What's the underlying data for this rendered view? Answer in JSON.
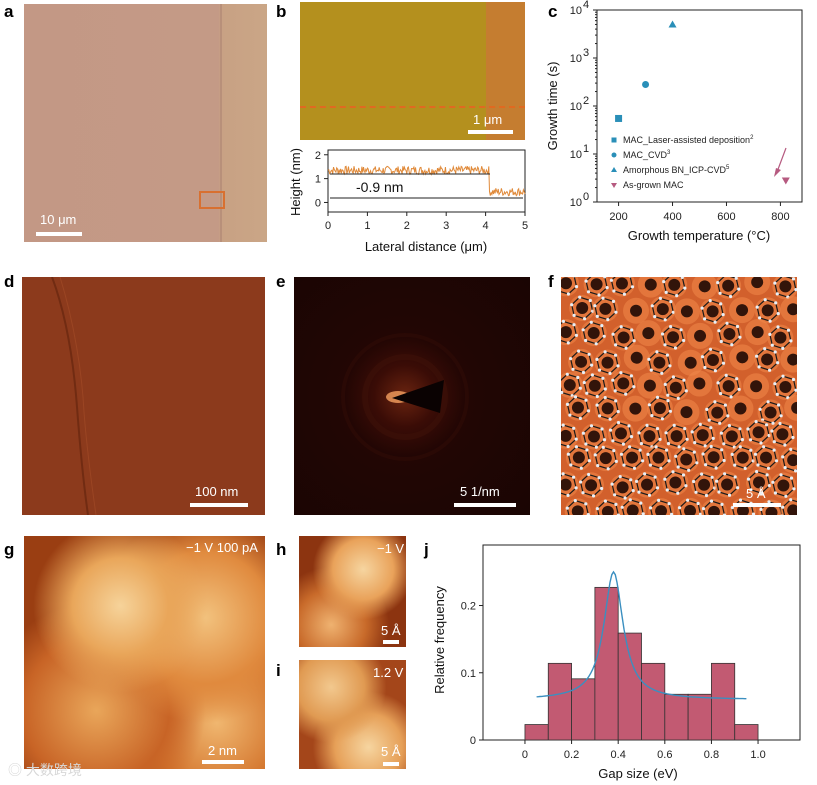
{
  "panel_labels": {
    "a": "a",
    "b": "b",
    "c": "c",
    "d": "d",
    "e": "e",
    "f": "f",
    "g": "g",
    "h": "h",
    "i": "i",
    "j": "j"
  },
  "scalebars": {
    "a": "10 μm",
    "b": "1 μm",
    "d": "100 nm",
    "e": "5 1/nm",
    "f": "5 Å",
    "g": "2 nm",
    "h": "5 Å",
    "i": "5 Å"
  },
  "stm_conditions": {
    "g": "−1 V 100 pA",
    "h": "−1 V",
    "i": "1.2 V"
  },
  "watermark": "大数跨境",
  "colors": {
    "optical": "#c49a86",
    "afm_film": "#b4901e",
    "afm_bg": "#c57d30",
    "afm_dashed": "#e06a20",
    "tem": "#8c3a1c",
    "fft": "#1a0503",
    "atomic": "#d2602c",
    "stm": "#e09a4a",
    "hist_bar": "#c25a72",
    "fit_line": "#3b8fc0",
    "series_blue": "#2a8fb8",
    "series_pink": "#b65a80"
  },
  "profile": {
    "xlabel": "Lateral distance  (μm)",
    "ylabel": "Height (nm)",
    "annotation": "-0.9 nm",
    "xticks": [
      "0",
      "1",
      "2",
      "3",
      "4",
      "5"
    ],
    "yticks": [
      "0",
      "1",
      "2"
    ]
  },
  "chart_data": [
    {
      "type": "scatter",
      "title": "",
      "xlabel": "Growth  temperature (°C)",
      "ylabel": "Growth time (s)",
      "xlim": [
        120,
        880
      ],
      "ylim_log10": [
        0,
        4
      ],
      "xticks": [
        "200",
        "400",
        "600",
        "800"
      ],
      "yticks": [
        "10^0",
        "10^1",
        "10^2",
        "10^3",
        "10^4"
      ],
      "series": [
        {
          "name": "MAC_Laser-assisted deposition",
          "ref": "2",
          "marker": "square",
          "color": "#2a8fb8",
          "points": [
            [
              200,
              55
            ]
          ]
        },
        {
          "name": "MAC_CVD",
          "ref": "3",
          "marker": "circle",
          "color": "#2a8fb8",
          "points": [
            [
              300,
              280
            ]
          ]
        },
        {
          "name": "Amorphous BN_ICP-CVD",
          "ref": "5",
          "marker": "triangle",
          "color": "#2a8fb8",
          "points": [
            [
              400,
              5000
            ]
          ]
        },
        {
          "name": "As-grown MAC",
          "ref": "",
          "marker": "triangle-down",
          "color": "#b65a80",
          "points": [
            [
              820,
              2.8
            ]
          ]
        }
      ]
    },
    {
      "type": "bar",
      "title": "",
      "xlabel": "Gap size (eV)",
      "ylabel": "Relative frequency",
      "xlim": [
        -0.18,
        1.18
      ],
      "ylim": [
        0,
        0.29
      ],
      "xticks": [
        "0",
        "0.2",
        "0.4",
        "0.6",
        "0.8",
        "1.0"
      ],
      "yticks": [
        "0",
        "0.1",
        "0.2"
      ],
      "bin_edges": [
        0.0,
        0.1,
        0.2,
        0.3,
        0.4,
        0.5,
        0.6,
        0.7,
        0.8,
        0.9,
        1.0
      ],
      "values": [
        0.023,
        0.114,
        0.091,
        0.227,
        0.159,
        0.114,
        0.068,
        0.068,
        0.114,
        0.023
      ],
      "fit": {
        "type": "lorentzian",
        "center": 0.38,
        "peak": 0.25,
        "baseline": 0.06,
        "x_range": [
          0.05,
          0.95
        ]
      }
    }
  ]
}
